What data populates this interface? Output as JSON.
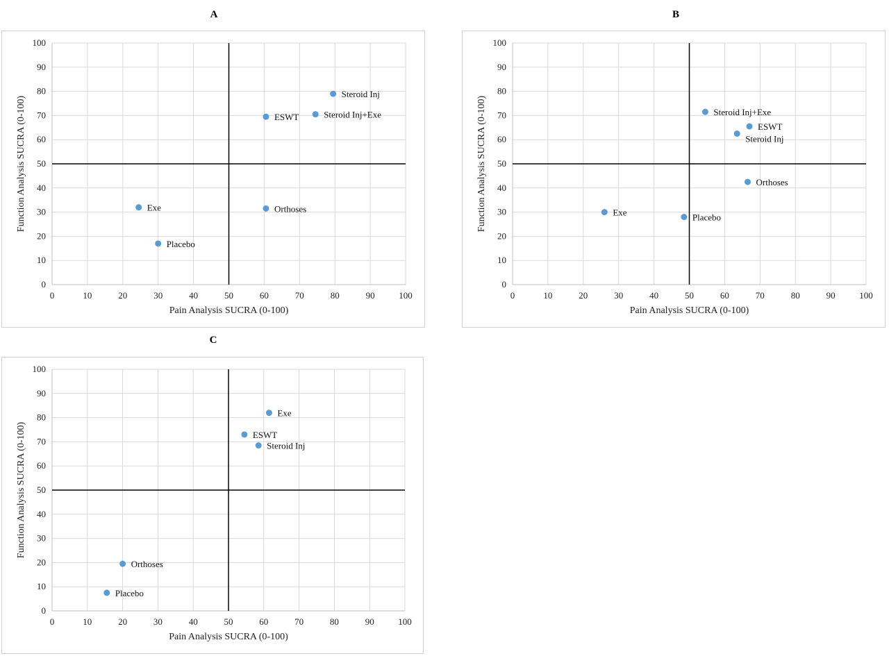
{
  "chart_data": [
    {
      "type": "scatter",
      "title": "A",
      "xlabel": "Pain Analysis SUCRA (0-100)",
      "ylabel": "Function Analysis SUCRA (0-100)",
      "xlim": [
        0,
        100
      ],
      "ylim": [
        0,
        100
      ],
      "xticks": [
        "0",
        "10",
        "20",
        "30",
        "40",
        "50",
        "60",
        "70",
        "80",
        "90",
        "100"
      ],
      "yticks": [
        "0",
        "10",
        "20",
        "30",
        "40",
        "50",
        "60",
        "70",
        "80",
        "90",
        "100"
      ],
      "grid": true,
      "reference_lines": {
        "x": 50,
        "y": 50
      },
      "marker_color": "#5b9bd5",
      "points": [
        {
          "label": "Steroid Inj",
          "x": 79.5,
          "y": 79
        },
        {
          "label": "Steroid Inj+Exe",
          "x": 74.5,
          "y": 70.5
        },
        {
          "label": "ESWT",
          "x": 60.5,
          "y": 69.5
        },
        {
          "label": "Exe",
          "x": 24.5,
          "y": 32
        },
        {
          "label": "Orthoses",
          "x": 60.5,
          "y": 31.5
        },
        {
          "label": "Placebo",
          "x": 30,
          "y": 17
        }
      ]
    },
    {
      "type": "scatter",
      "title": "B",
      "xlabel": "Pain Analysis SUCRA (0-100)",
      "ylabel": "Function Analysis SUCRA (0-100)",
      "xlim": [
        0,
        100
      ],
      "ylim": [
        0,
        100
      ],
      "xticks": [
        "0",
        "10",
        "20",
        "30",
        "40",
        "50",
        "60",
        "70",
        "80",
        "90",
        "100"
      ],
      "yticks": [
        "0",
        "10",
        "20",
        "30",
        "40",
        "50",
        "60",
        "70",
        "80",
        "90",
        "100"
      ],
      "grid": true,
      "reference_lines": {
        "x": 50,
        "y": 50
      },
      "marker_color": "#5b9bd5",
      "points": [
        {
          "label": "Steroid Inj+Exe",
          "x": 54.5,
          "y": 71.5
        },
        {
          "label": "ESWT",
          "x": 67,
          "y": 65.5
        },
        {
          "label": "Steroid Inj",
          "x": 63.5,
          "y": 62.5
        },
        {
          "label": "Orthoses",
          "x": 66.5,
          "y": 42.5
        },
        {
          "label": "Exe",
          "x": 26,
          "y": 30
        },
        {
          "label": "Placebo",
          "x": 48.5,
          "y": 28
        }
      ]
    },
    {
      "type": "scatter",
      "title": "C",
      "xlabel": "Pain Analysis SUCRA (0-100)",
      "ylabel": "Function Analysis SUCRA (0-100)",
      "xlim": [
        0,
        100
      ],
      "ylim": [
        0,
        100
      ],
      "xticks": [
        "0",
        "10",
        "20",
        "30",
        "40",
        "50",
        "60",
        "70",
        "80",
        "90",
        "100"
      ],
      "yticks": [
        "0",
        "10",
        "20",
        "30",
        "40",
        "50",
        "60",
        "70",
        "80",
        "90",
        "100"
      ],
      "grid": true,
      "reference_lines": {
        "x": 50,
        "y": 50
      },
      "marker_color": "#5b9bd5",
      "points": [
        {
          "label": "Exe",
          "x": 61.5,
          "y": 82
        },
        {
          "label": "ESWT",
          "x": 54.5,
          "y": 73
        },
        {
          "label": "Steroid Inj",
          "x": 58.5,
          "y": 68.5
        },
        {
          "label": "Orthoses",
          "x": 20,
          "y": 19.5
        },
        {
          "label": "Placebo",
          "x": 15.5,
          "y": 7.5
        }
      ]
    }
  ]
}
